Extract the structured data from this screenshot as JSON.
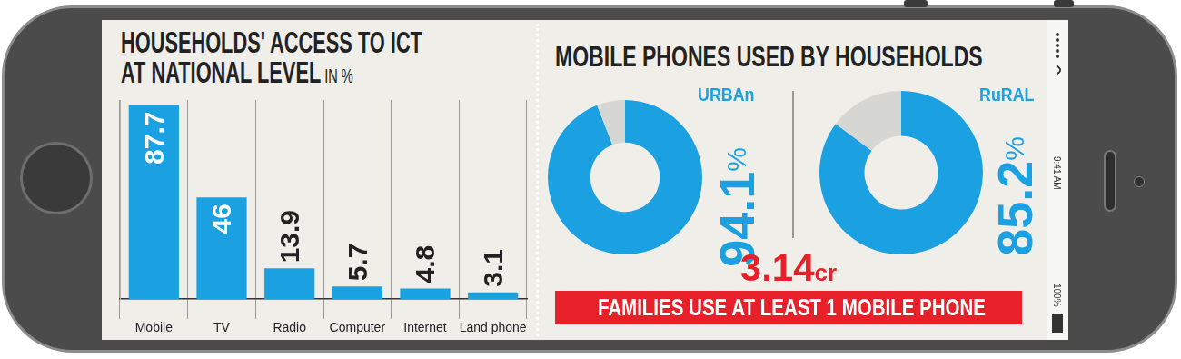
{
  "chart_data": [
    {
      "type": "bar",
      "title": "HOUSEHOLDS' ACCESS TO ICT\nAT NATIONAL LEVEL",
      "subtitle": "IN %",
      "categories": [
        "Mobile",
        "TV",
        "Radio",
        "Computer",
        "Internet",
        "Land phone"
      ],
      "values": [
        87.7,
        46,
        13.9,
        5.7,
        4.8,
        3.1
      ],
      "color": "#1ba1e2",
      "ylim": [
        0,
        90
      ],
      "grid": "x",
      "data_labels": true,
      "tick_labels": "x"
    },
    {
      "type": "doughnut",
      "title": "URBAn",
      "categories": [
        null,
        null
      ],
      "values": [
        94.1,
        5.9
      ],
      "value_labels": [
        "94.1%",
        null
      ],
      "colors": [
        "#1ba1e2",
        "#d6d6d2"
      ],
      "data_labels": true
    },
    {
      "type": "doughnut",
      "title": "RuRAL",
      "categories": [
        null,
        null
      ],
      "values": [
        85.2,
        14.8
      ],
      "value_labels": [
        "85.2%",
        null
      ],
      "colors": [
        "#1ba1e2",
        "#d6d6d2"
      ],
      "data_labels": true
    }
  ],
  "panel": {
    "title": "MOBILE PHONES USED BY HOUSEHOLDS",
    "highlight": {
      "value": 3.14,
      "unit": "cr",
      "text": "FAMILIES USE AT LEAST 1 MOBILE PHONE"
    }
  },
  "device": {
    "time": "9:41 AM",
    "battery": "100%"
  }
}
